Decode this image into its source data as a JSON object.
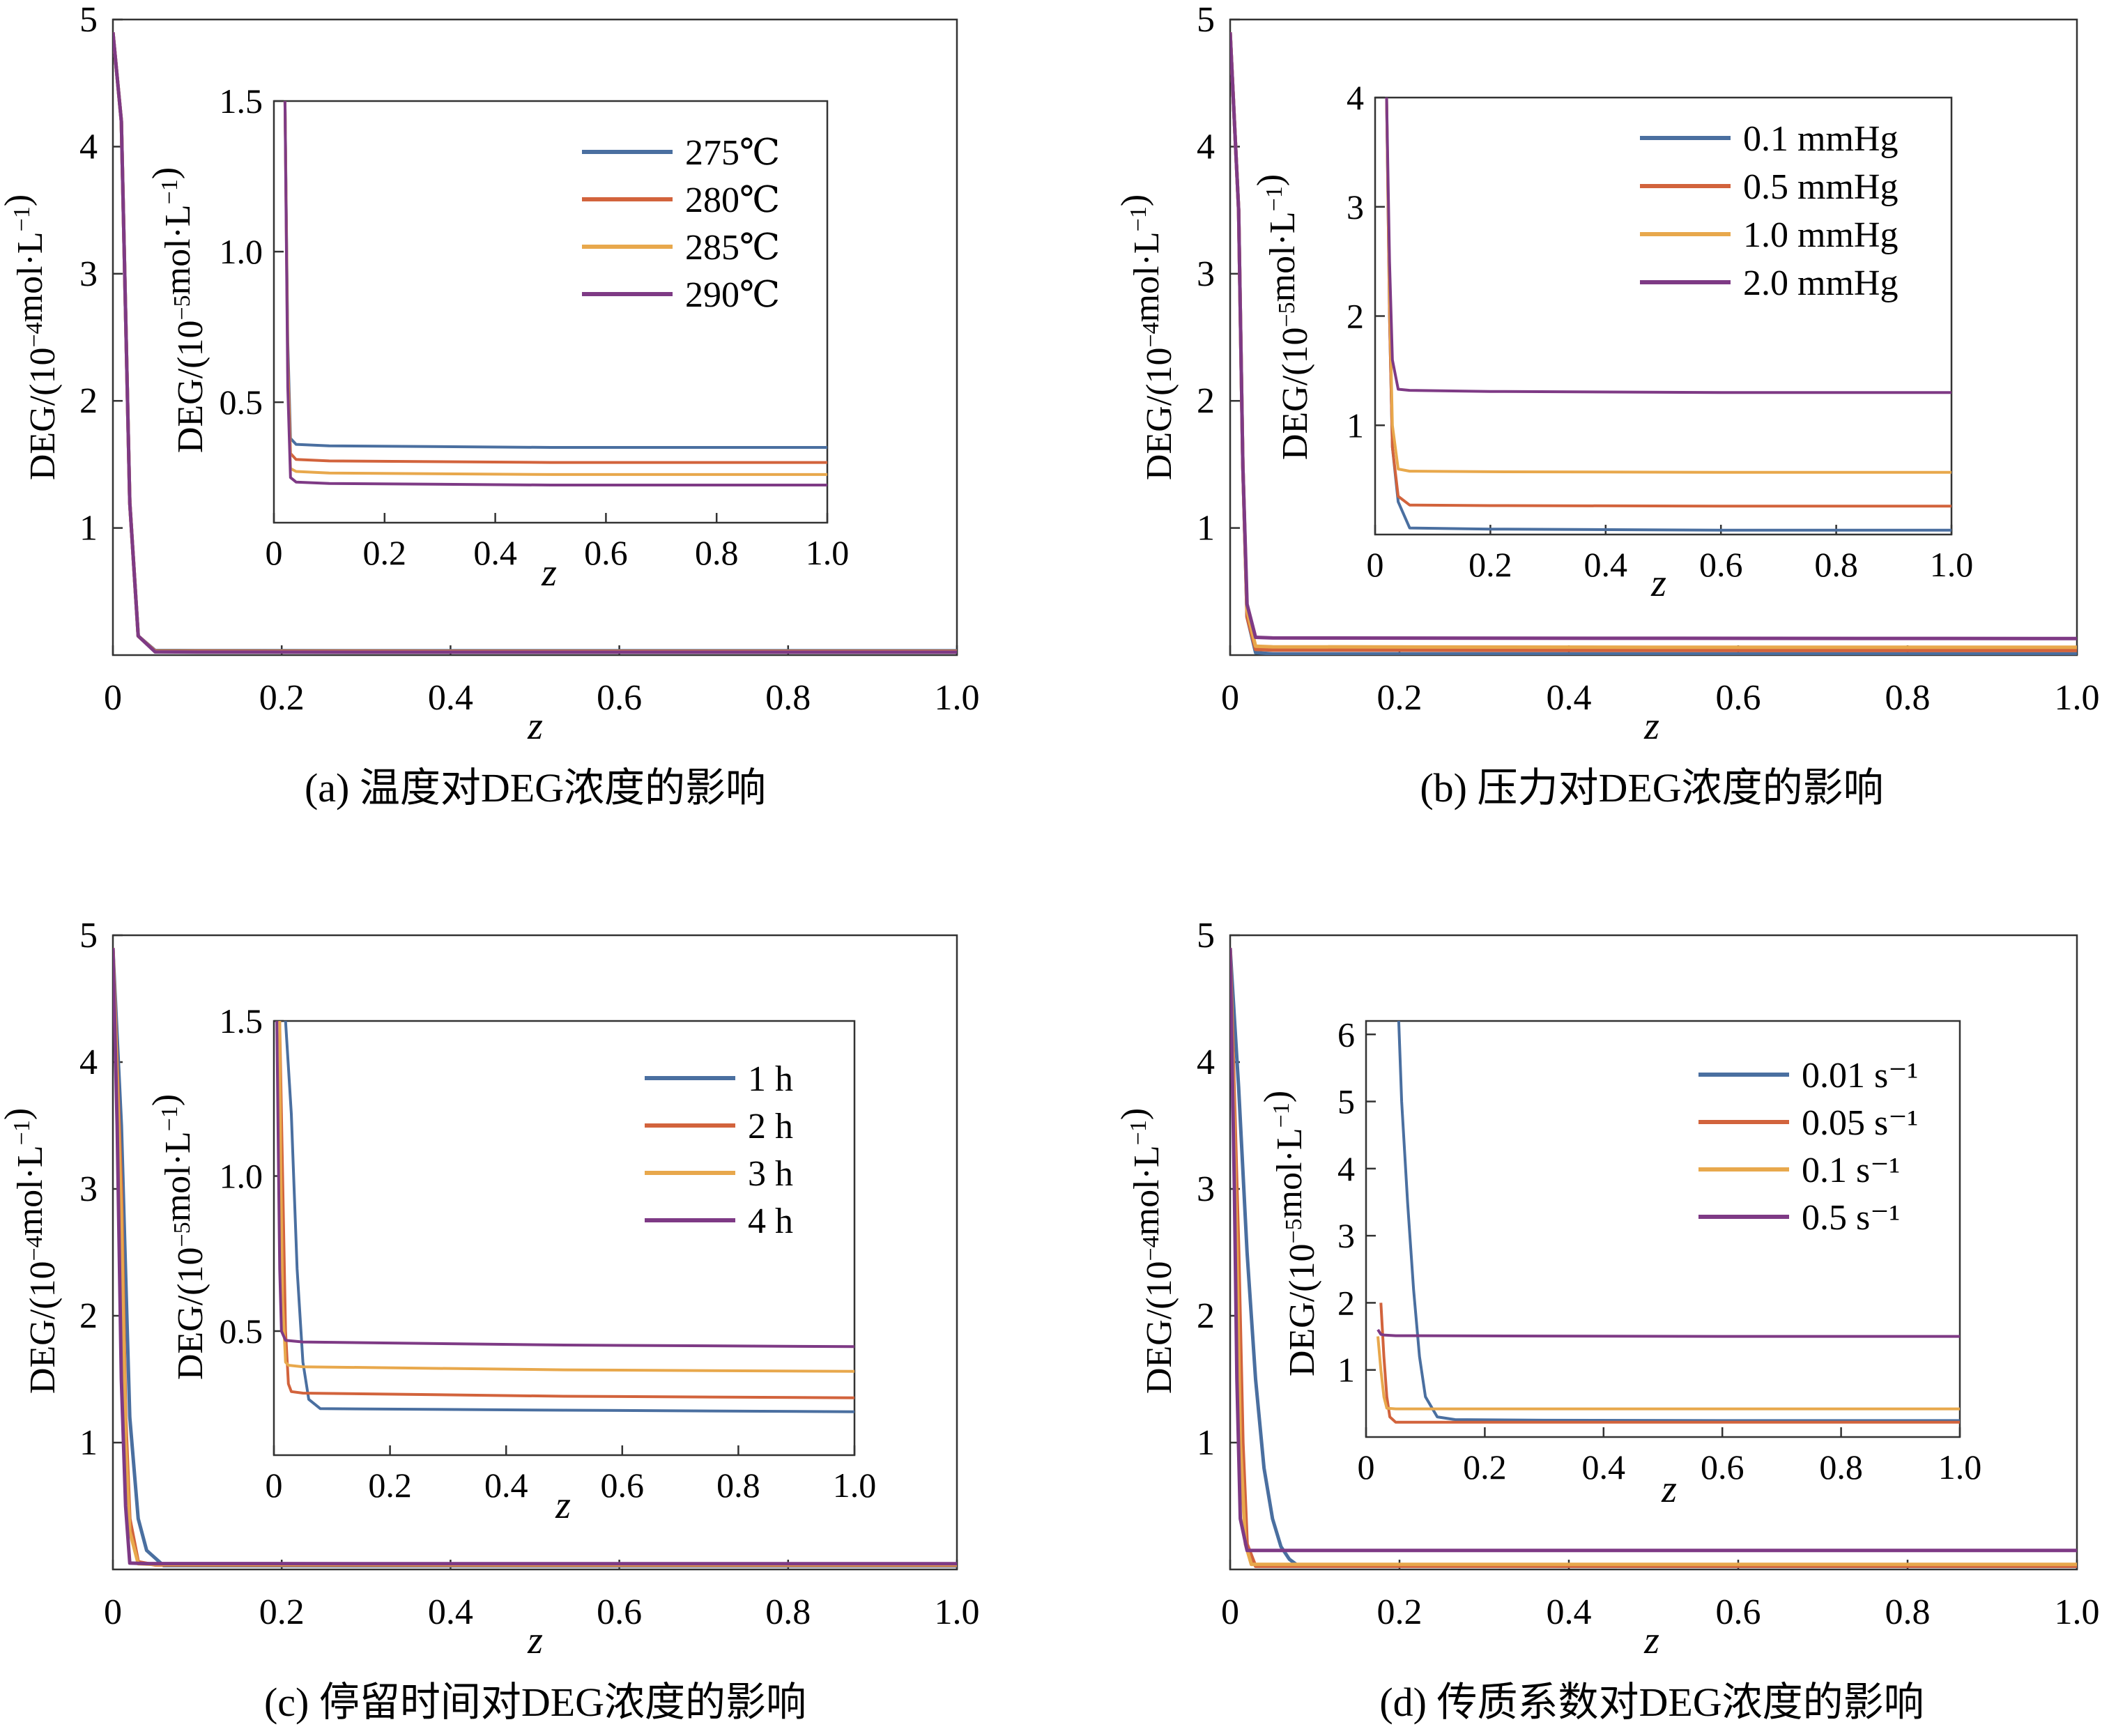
{
  "chart_data": [
    {
      "type": "line",
      "caption": "(a) 温度对DEG浓度的影响",
      "xlabel": "z",
      "ylabel": "DEG/(10⁻⁴mol·L⁻¹)",
      "xlim": [
        0,
        1.0
      ],
      "ylim": [
        0,
        5
      ],
      "xticks": [
        "0",
        "0.2",
        "0.4",
        "0.6",
        "0.8",
        "1.0"
      ],
      "yticks": [
        "1",
        "2",
        "3",
        "4",
        "5"
      ],
      "series": [
        {
          "name": "275℃",
          "color": "#4a6fa0",
          "x": [
            0,
            0.01,
            0.02,
            0.03,
            0.05,
            0.1,
            0.5,
            1.0
          ],
          "y": [
            4.9,
            4.2,
            1.2,
            0.15,
            0.036,
            0.035,
            0.034,
            0.034
          ]
        },
        {
          "name": "280℃",
          "color": "#d2633c",
          "x": [
            0,
            0.01,
            0.02,
            0.03,
            0.05,
            0.1,
            0.5,
            1.0
          ],
          "y": [
            4.9,
            4.2,
            1.2,
            0.15,
            0.032,
            0.031,
            0.03,
            0.03
          ]
        },
        {
          "name": "285℃",
          "color": "#e8a84c",
          "x": [
            0,
            0.01,
            0.02,
            0.03,
            0.05,
            0.1,
            0.5,
            1.0
          ],
          "y": [
            4.9,
            4.2,
            1.2,
            0.15,
            0.028,
            0.027,
            0.026,
            0.026
          ]
        },
        {
          "name": "290℃",
          "color": "#7e3a85",
          "x": [
            0,
            0.01,
            0.02,
            0.03,
            0.05,
            0.1,
            0.5,
            1.0
          ],
          "y": [
            4.9,
            4.2,
            1.2,
            0.15,
            0.025,
            0.024,
            0.023,
            0.023
          ]
        }
      ],
      "inset": {
        "xlabel": "z",
        "ylabel": "DEG/(10⁻⁵mol·L⁻¹)",
        "xlim": [
          0,
          1.0
        ],
        "ylim": [
          0.1,
          1.5
        ],
        "xticks": [
          "0",
          "0.2",
          "0.4",
          "0.6",
          "0.8",
          "1.0"
        ],
        "yticks": [
          "0.5",
          "1.0",
          "1.5"
        ],
        "series": [
          {
            "name": "275℃",
            "color": "#4a6fa0",
            "x": [
              0.02,
              0.025,
              0.03,
              0.04,
              0.1,
              0.5,
              1.0
            ],
            "y": [
              1.5,
              0.7,
              0.38,
              0.36,
              0.355,
              0.35,
              0.35
            ]
          },
          {
            "name": "280℃",
            "color": "#d2633c",
            "x": [
              0.02,
              0.025,
              0.03,
              0.04,
              0.1,
              0.5,
              1.0
            ],
            "y": [
              1.5,
              0.65,
              0.33,
              0.31,
              0.305,
              0.3,
              0.3
            ]
          },
          {
            "name": "285℃",
            "color": "#e8a84c",
            "x": [
              0.02,
              0.025,
              0.03,
              0.04,
              0.1,
              0.5,
              1.0
            ],
            "y": [
              1.5,
              0.6,
              0.28,
              0.27,
              0.265,
              0.26,
              0.26
            ]
          },
          {
            "name": "290℃",
            "color": "#7e3a85",
            "x": [
              0.02,
              0.025,
              0.03,
              0.04,
              0.1,
              0.5,
              1.0
            ],
            "y": [
              1.5,
              0.55,
              0.25,
              0.235,
              0.23,
              0.225,
              0.225
            ]
          }
        ]
      }
    },
    {
      "type": "line",
      "caption": "(b) 压力对DEG浓度的影响",
      "xlabel": "z",
      "ylabel": "DEG/(10⁻⁴mol·L⁻¹)",
      "xlim": [
        0,
        1.0
      ],
      "ylim": [
        0,
        5
      ],
      "xticks": [
        "0",
        "0.2",
        "0.4",
        "0.6",
        "0.8",
        "1.0"
      ],
      "yticks": [
        "1",
        "2",
        "3",
        "4",
        "5"
      ],
      "series": [
        {
          "name": "0.1 mmHg",
          "color": "#4a6fa0",
          "x": [
            0,
            0.01,
            0.015,
            0.02,
            0.03,
            0.05,
            0.5,
            1.0
          ],
          "y": [
            4.9,
            3.5,
            1.5,
            0.3,
            0.02,
            0.01,
            0.01,
            0.01
          ]
        },
        {
          "name": "0.5 mmHg",
          "color": "#d2633c",
          "x": [
            0,
            0.01,
            0.015,
            0.02,
            0.03,
            0.05,
            0.5,
            1.0
          ],
          "y": [
            4.9,
            3.5,
            1.5,
            0.3,
            0.045,
            0.04,
            0.037,
            0.036
          ]
        },
        {
          "name": "1.0 mmHg",
          "color": "#e8a84c",
          "x": [
            0,
            0.01,
            0.015,
            0.02,
            0.03,
            0.05,
            0.5,
            1.0
          ],
          "y": [
            4.9,
            3.5,
            1.5,
            0.35,
            0.07,
            0.065,
            0.062,
            0.062
          ]
        },
        {
          "name": "2.0 mmHg",
          "color": "#7e3a85",
          "x": [
            0,
            0.01,
            0.015,
            0.02,
            0.03,
            0.05,
            0.5,
            1.0
          ],
          "y": [
            4.9,
            3.5,
            1.5,
            0.4,
            0.14,
            0.135,
            0.132,
            0.13
          ]
        }
      ],
      "inset": {
        "xlabel": "z",
        "ylabel": "DEG/(10⁻⁵mol·L⁻¹)",
        "xlim": [
          0,
          1.0
        ],
        "ylim": [
          0,
          4
        ],
        "xticks": [
          "0",
          "0.2",
          "0.4",
          "0.6",
          "0.8",
          "1.0"
        ],
        "yticks": [
          "1",
          "2",
          "3",
          "4"
        ],
        "series": [
          {
            "name": "0.1 mmHg",
            "color": "#4a6fa0",
            "x": [
              0.02,
              0.025,
              0.03,
              0.04,
              0.06,
              0.2,
              0.6,
              1.0
            ],
            "y": [
              4.0,
              2.0,
              0.8,
              0.3,
              0.06,
              0.05,
              0.04,
              0.04
            ]
          },
          {
            "name": "0.5 mmHg",
            "color": "#d2633c",
            "x": [
              0.02,
              0.025,
              0.03,
              0.04,
              0.06,
              0.2,
              0.6,
              1.0
            ],
            "y": [
              4.0,
              2.0,
              0.8,
              0.35,
              0.27,
              0.265,
              0.26,
              0.26
            ]
          },
          {
            "name": "1.0 mmHg",
            "color": "#e8a84c",
            "x": [
              0.02,
              0.025,
              0.03,
              0.04,
              0.06,
              0.2,
              0.6,
              1.0
            ],
            "y": [
              4.0,
              2.2,
              1.0,
              0.6,
              0.58,
              0.575,
              0.57,
              0.57
            ]
          },
          {
            "name": "2.0 mmHg",
            "color": "#7e3a85",
            "x": [
              0.02,
              0.025,
              0.03,
              0.04,
              0.06,
              0.2,
              0.6,
              1.0
            ],
            "y": [
              4.0,
              2.5,
              1.6,
              1.33,
              1.32,
              1.31,
              1.3,
              1.3
            ]
          }
        ]
      }
    },
    {
      "type": "line",
      "caption": "(c) 停留时间对DEG浓度的影响",
      "xlabel": "z",
      "ylabel": "DEG/(10⁻⁴mol·L⁻¹)",
      "xlim": [
        0,
        1.0
      ],
      "ylim": [
        0,
        5
      ],
      "xticks": [
        "0",
        "0.2",
        "0.4",
        "0.6",
        "0.8",
        "1.0"
      ],
      "yticks": [
        "1",
        "2",
        "3",
        "4",
        "5"
      ],
      "series": [
        {
          "name": "1 h",
          "color": "#4a6fa0",
          "x": [
            0,
            0.01,
            0.02,
            0.03,
            0.04,
            0.06,
            0.5,
            1.0
          ],
          "y": [
            4.9,
            3.5,
            1.2,
            0.4,
            0.15,
            0.03,
            0.028,
            0.028
          ]
        },
        {
          "name": "2 h",
          "color": "#d2633c",
          "x": [
            0,
            0.01,
            0.015,
            0.02,
            0.03,
            0.05,
            0.5,
            1.0
          ],
          "y": [
            4.9,
            3.0,
            1.2,
            0.4,
            0.06,
            0.035,
            0.033,
            0.033
          ]
        },
        {
          "name": "3 h",
          "color": "#e8a84c",
          "x": [
            0,
            0.01,
            0.015,
            0.02,
            0.03,
            0.05,
            0.5,
            1.0
          ],
          "y": [
            4.9,
            2.8,
            1.0,
            0.3,
            0.045,
            0.04,
            0.038,
            0.038
          ]
        },
        {
          "name": "4 h",
          "color": "#7e3a85",
          "x": [
            0,
            0.005,
            0.01,
            0.015,
            0.02,
            0.04,
            0.5,
            1.0
          ],
          "y": [
            4.9,
            3.5,
            1.5,
            0.5,
            0.05,
            0.046,
            0.045,
            0.045
          ]
        }
      ],
      "inset": {
        "xlabel": "z",
        "ylabel": "DEG/(10⁻⁵mol·L⁻¹)",
        "xlim": [
          0,
          1.0
        ],
        "ylim": [
          0.1,
          1.5
        ],
        "xticks": [
          "0",
          "0.2",
          "0.4",
          "0.6",
          "0.8",
          "1.0"
        ],
        "yticks": [
          "0.5",
          "1.0",
          "1.5"
        ],
        "series": [
          {
            "name": "1 h",
            "color": "#4a6fa0",
            "x": [
              0.02,
              0.03,
              0.04,
              0.05,
              0.06,
              0.08,
              0.5,
              1.0
            ],
            "y": [
              1.5,
              1.2,
              0.7,
              0.4,
              0.28,
              0.25,
              0.245,
              0.24
            ]
          },
          {
            "name": "2 h",
            "color": "#d2633c",
            "x": [
              0.01,
              0.015,
              0.02,
              0.025,
              0.03,
              0.05,
              0.5,
              1.0
            ],
            "y": [
              1.5,
              1.0,
              0.5,
              0.33,
              0.305,
              0.3,
              0.29,
              0.285
            ]
          },
          {
            "name": "3 h",
            "color": "#e8a84c",
            "x": [
              0.01,
              0.012,
              0.015,
              0.02,
              0.025,
              0.05,
              0.5,
              1.0
            ],
            "y": [
              1.5,
              1.0,
              0.6,
              0.4,
              0.39,
              0.385,
              0.375,
              0.37
            ]
          },
          {
            "name": "4 h",
            "color": "#7e3a85",
            "x": [
              0.005,
              0.008,
              0.01,
              0.013,
              0.02,
              0.05,
              0.5,
              1.0
            ],
            "y": [
              1.5,
              1.0,
              0.7,
              0.5,
              0.47,
              0.465,
              0.455,
              0.45
            ]
          }
        ]
      }
    },
    {
      "type": "line",
      "caption": "(d) 传质系数对DEG浓度的影响",
      "xlabel": "z",
      "ylabel": "DEG/(10⁻⁴mol·L⁻¹)",
      "xlim": [
        0,
        1.0
      ],
      "ylim": [
        0,
        5
      ],
      "xticks": [
        "0",
        "0.2",
        "0.4",
        "0.6",
        "0.8",
        "1.0"
      ],
      "yticks": [
        "1",
        "2",
        "3",
        "4",
        "5"
      ],
      "series": [
        {
          "name": "0.01 s⁻¹",
          "color": "#4a6fa0",
          "x": [
            0,
            0.01,
            0.02,
            0.03,
            0.04,
            0.05,
            0.06,
            0.07,
            0.08,
            0.5,
            1.0
          ],
          "y": [
            4.9,
            3.8,
            2.5,
            1.5,
            0.8,
            0.4,
            0.18,
            0.08,
            0.03,
            0.025,
            0.025
          ]
        },
        {
          "name": "0.05 s⁻¹",
          "color": "#d2633c",
          "x": [
            0,
            0.01,
            0.015,
            0.02,
            0.03,
            0.5,
            1.0
          ],
          "y": [
            4.9,
            2.5,
            1.0,
            0.2,
            0.025,
            0.025,
            0.025
          ]
        },
        {
          "name": "0.1 s⁻¹",
          "color": "#e8a84c",
          "x": [
            0,
            0.008,
            0.012,
            0.018,
            0.025,
            0.5,
            1.0
          ],
          "y": [
            4.9,
            2.5,
            1.0,
            0.2,
            0.04,
            0.04,
            0.04
          ]
        },
        {
          "name": "0.5 s⁻¹",
          "color": "#7e3a85",
          "x": [
            0,
            0.005,
            0.008,
            0.012,
            0.02,
            0.5,
            1.0
          ],
          "y": [
            4.9,
            3.0,
            1.5,
            0.4,
            0.15,
            0.15,
            0.15
          ]
        }
      ],
      "inset": {
        "xlabel": "z",
        "ylabel": "DEG/(10⁻⁵mol·L⁻¹)",
        "xlim": [
          0,
          1.0
        ],
        "ylim": [
          0,
          6.2
        ],
        "xticks": [
          "0",
          "0.2",
          "0.4",
          "0.6",
          "0.8",
          "1.0"
        ],
        "yticks": [
          "1",
          "2",
          "3",
          "4",
          "5",
          "6"
        ],
        "series": [
          {
            "name": "0.01 s⁻¹",
            "color": "#4a6fa0",
            "x": [
              0.055,
              0.06,
              0.07,
              0.08,
              0.09,
              0.1,
              0.12,
              0.15,
              0.3,
              0.6,
              1.0
            ],
            "y": [
              6.2,
              5.0,
              3.5,
              2.2,
              1.2,
              0.6,
              0.3,
              0.26,
              0.25,
              0.245,
              0.245
            ]
          },
          {
            "name": "0.05 s⁻¹",
            "color": "#d2633c",
            "x": [
              0.025,
              0.03,
              0.035,
              0.04,
              0.05,
              0.3,
              0.6,
              1.0
            ],
            "y": [
              2.0,
              1.2,
              0.6,
              0.3,
              0.22,
              0.22,
              0.22,
              0.22
            ]
          },
          {
            "name": "0.1 s⁻¹",
            "color": "#e8a84c",
            "x": [
              0.02,
              0.025,
              0.03,
              0.035,
              0.05,
              0.3,
              0.6,
              1.0
            ],
            "y": [
              1.5,
              1.0,
              0.6,
              0.43,
              0.42,
              0.42,
              0.42,
              0.42
            ]
          },
          {
            "name": "0.5 s⁻¹",
            "color": "#7e3a85",
            "x": [
              0.02,
              0.025,
              0.03,
              0.05,
              0.3,
              0.6,
              1.0
            ],
            "y": [
              1.6,
              1.53,
              1.52,
              1.51,
              1.505,
              1.5,
              1.5
            ]
          }
        ]
      }
    }
  ]
}
